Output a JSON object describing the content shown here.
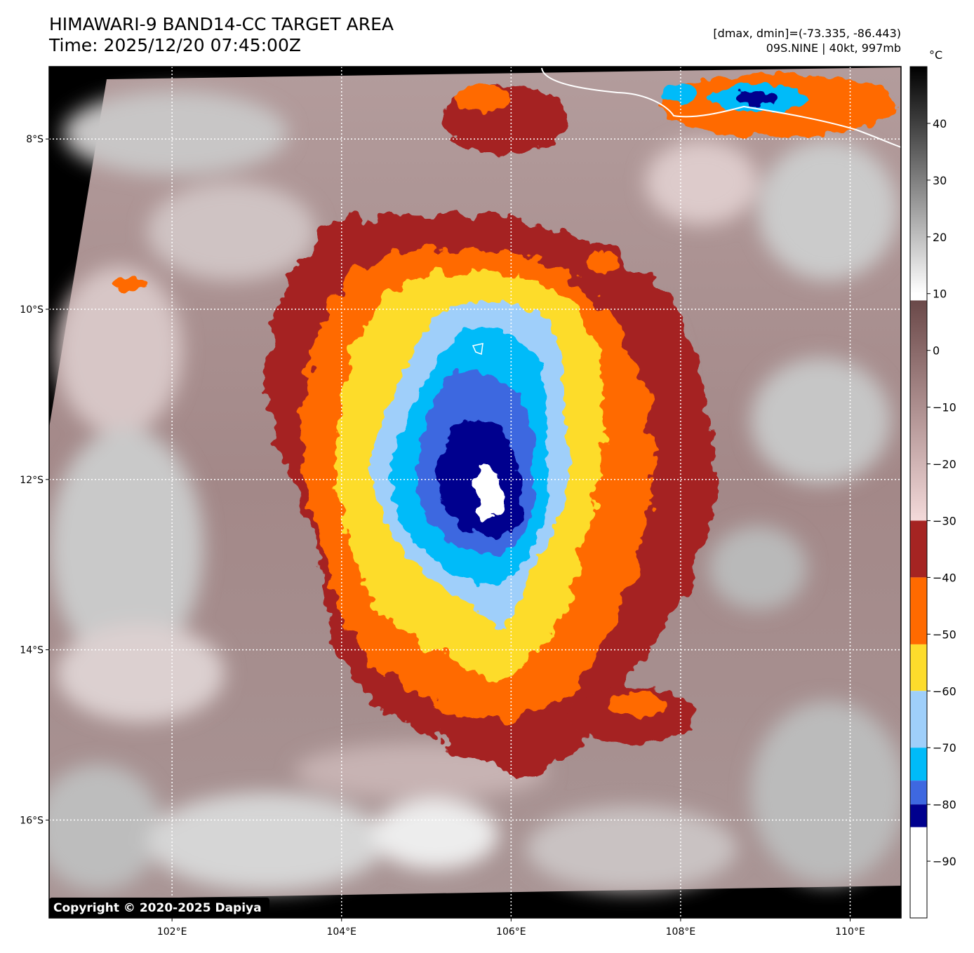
{
  "title": {
    "line1": "HIMAWARI-9 BAND14-CC TARGET AREA",
    "line2": "Time: 2025/12/20 07:45:00Z"
  },
  "info": {
    "line1": "[dmax, dmin]=(-73.335, -86.443)",
    "line2": "09S.NINE | 40kt, 997mb"
  },
  "axes": {
    "lat_labels": [
      "8°S",
      "10°S",
      "12°S",
      "14°S",
      "16°S"
    ],
    "lon_labels": [
      "102°E",
      "104°E",
      "106°E",
      "108°E",
      "110°E"
    ],
    "lat_values": [
      -8,
      -10,
      -12,
      -14,
      -16
    ],
    "lon_values": [
      102,
      104,
      106,
      108,
      110
    ],
    "lon_range": [
      100.55,
      110.6
    ],
    "lat_range": [
      -17.15,
      -7.15
    ],
    "grid": true
  },
  "colorbar": {
    "unit": "°C",
    "ticks": [
      "40",
      "30",
      "20",
      "10",
      "0",
      "−10",
      "−20",
      "−30",
      "−40",
      "−50",
      "−60",
      "−70",
      "−80",
      "−90"
    ],
    "tick_values": [
      40,
      30,
      20,
      10,
      0,
      -10,
      -20,
      -30,
      -40,
      -50,
      -60,
      -70,
      -80,
      -90
    ],
    "range": [
      -100,
      50
    ],
    "bands": [
      {
        "from": 10,
        "to": 50,
        "colors": [
          "#ffffff",
          "#000000"
        ]
      },
      {
        "from": -30,
        "to": 8.8,
        "colors": [
          "#f4dada",
          "#6a4848"
        ]
      },
      {
        "from": -40,
        "to": -30,
        "colors": [
          "#a52422"
        ]
      },
      {
        "from": -51.8,
        "to": -40,
        "colors": [
          "#ff6a00"
        ]
      },
      {
        "from": -60,
        "to": -51.8,
        "colors": [
          "#fddc2c"
        ]
      },
      {
        "from": -70,
        "to": -60,
        "colors": [
          "#9fcffa"
        ]
      },
      {
        "from": -75.8,
        "to": -70,
        "colors": [
          "#00bbf9"
        ]
      },
      {
        "from": -80,
        "to": -75.8,
        "colors": [
          "#3e68e0"
        ]
      },
      {
        "from": -84,
        "to": -80,
        "colors": [
          "#00008e"
        ]
      },
      {
        "from": -100,
        "to": -84,
        "colors": [
          "#ffffff"
        ]
      }
    ]
  },
  "storm": {
    "name": "09S.NINE",
    "center_lon": 105.75,
    "center_lat": -12.1
  },
  "copyright": "Copyright © 2020-2025 Dapiya"
}
